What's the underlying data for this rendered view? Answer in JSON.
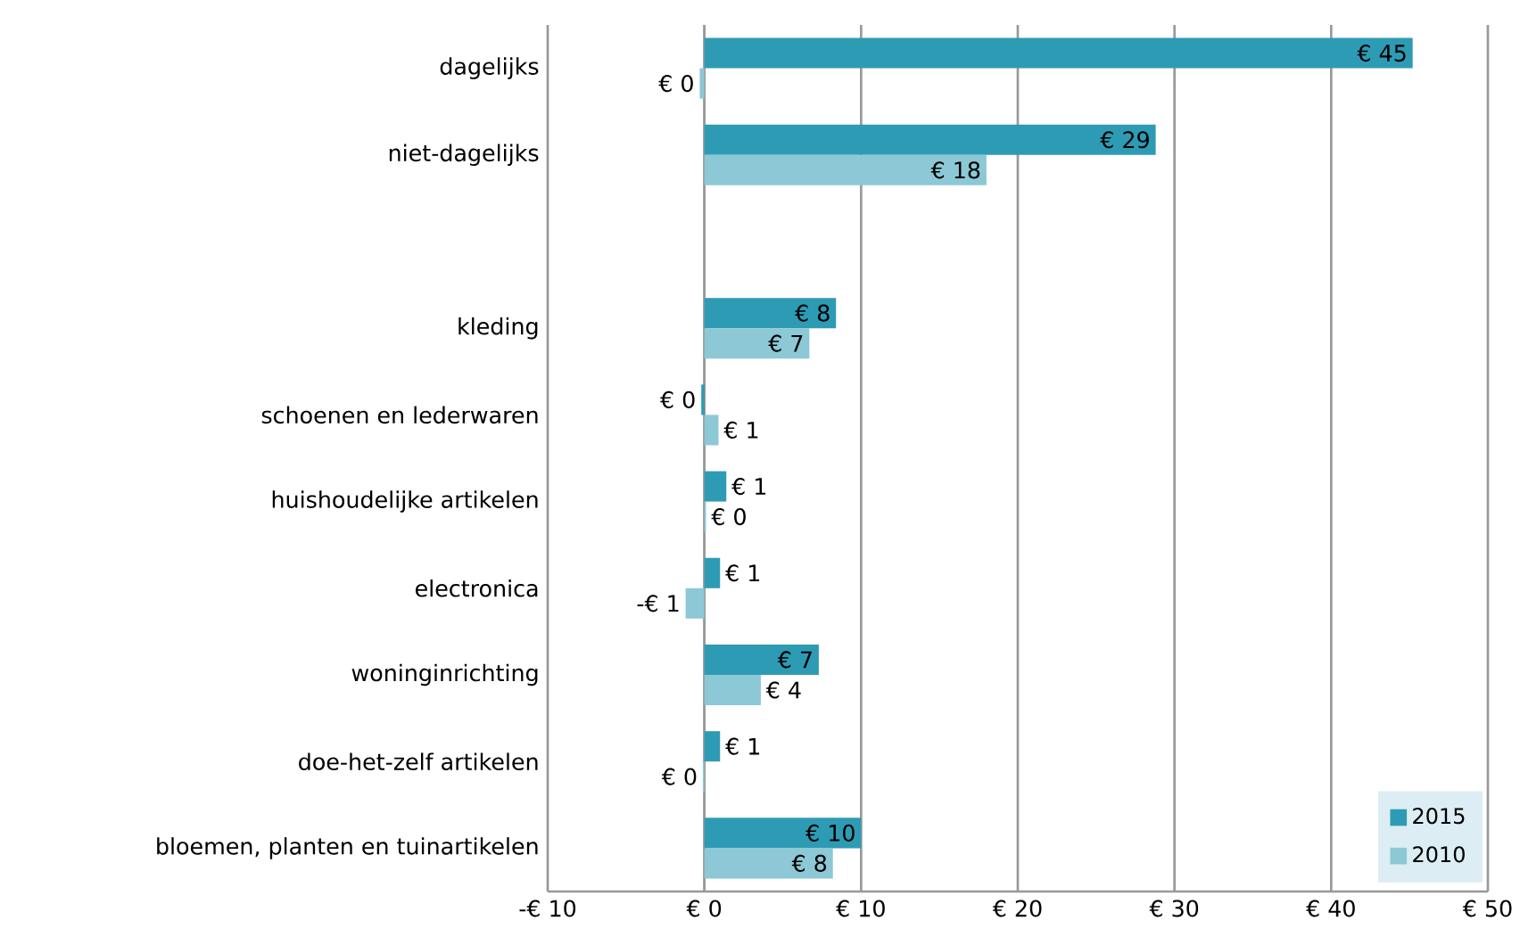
{
  "chart_data": {
    "type": "bar",
    "orientation": "horizontal",
    "categories": [
      "dagelijks",
      "niet-dagelijks",
      null,
      "kleding",
      "schoenen en lederwaren",
      "huishoudelijke artikelen",
      "electronica",
      "woninginrichting",
      "doe-het-zelf artikelen",
      "bloemen, planten en tuinartikelen"
    ],
    "series": [
      {
        "name": "2015",
        "color": "#2e9bb5",
        "values": [
          45.2,
          28.8,
          null,
          8.4,
          -0.2,
          1.4,
          1.0,
          7.3,
          1.0,
          10.0
        ],
        "value_labels": [
          "€ 45",
          "€ 29",
          null,
          "€ 8",
          "€ 0",
          "€ 1",
          "€ 1",
          "€ 7",
          "€ 1",
          "€ 10"
        ]
      },
      {
        "name": "2010",
        "color": "#8cc8d6",
        "values": [
          -0.3,
          18.0,
          null,
          6.7,
          0.9,
          0.1,
          -1.2,
          3.6,
          -0.1,
          8.2
        ],
        "value_labels": [
          "€ 0",
          "€ 18",
          null,
          "€ 7",
          "€ 1",
          "€ 0",
          "-€ 1",
          "€ 4",
          "€ 0",
          "€ 8"
        ]
      }
    ],
    "xlim": [
      -10,
      50
    ],
    "xticks": [
      {
        "value": -10,
        "label": "-€ 10"
      },
      {
        "value": 0,
        "label": "€ 0"
      },
      {
        "value": 10,
        "label": "€ 10"
      },
      {
        "value": 20,
        "label": "€ 20"
      },
      {
        "value": 30,
        "label": "€ 30"
      },
      {
        "value": 40,
        "label": "€ 40"
      },
      {
        "value": 50,
        "label": "€ 50"
      }
    ],
    "grid": "x",
    "legend": "bottom right"
  }
}
